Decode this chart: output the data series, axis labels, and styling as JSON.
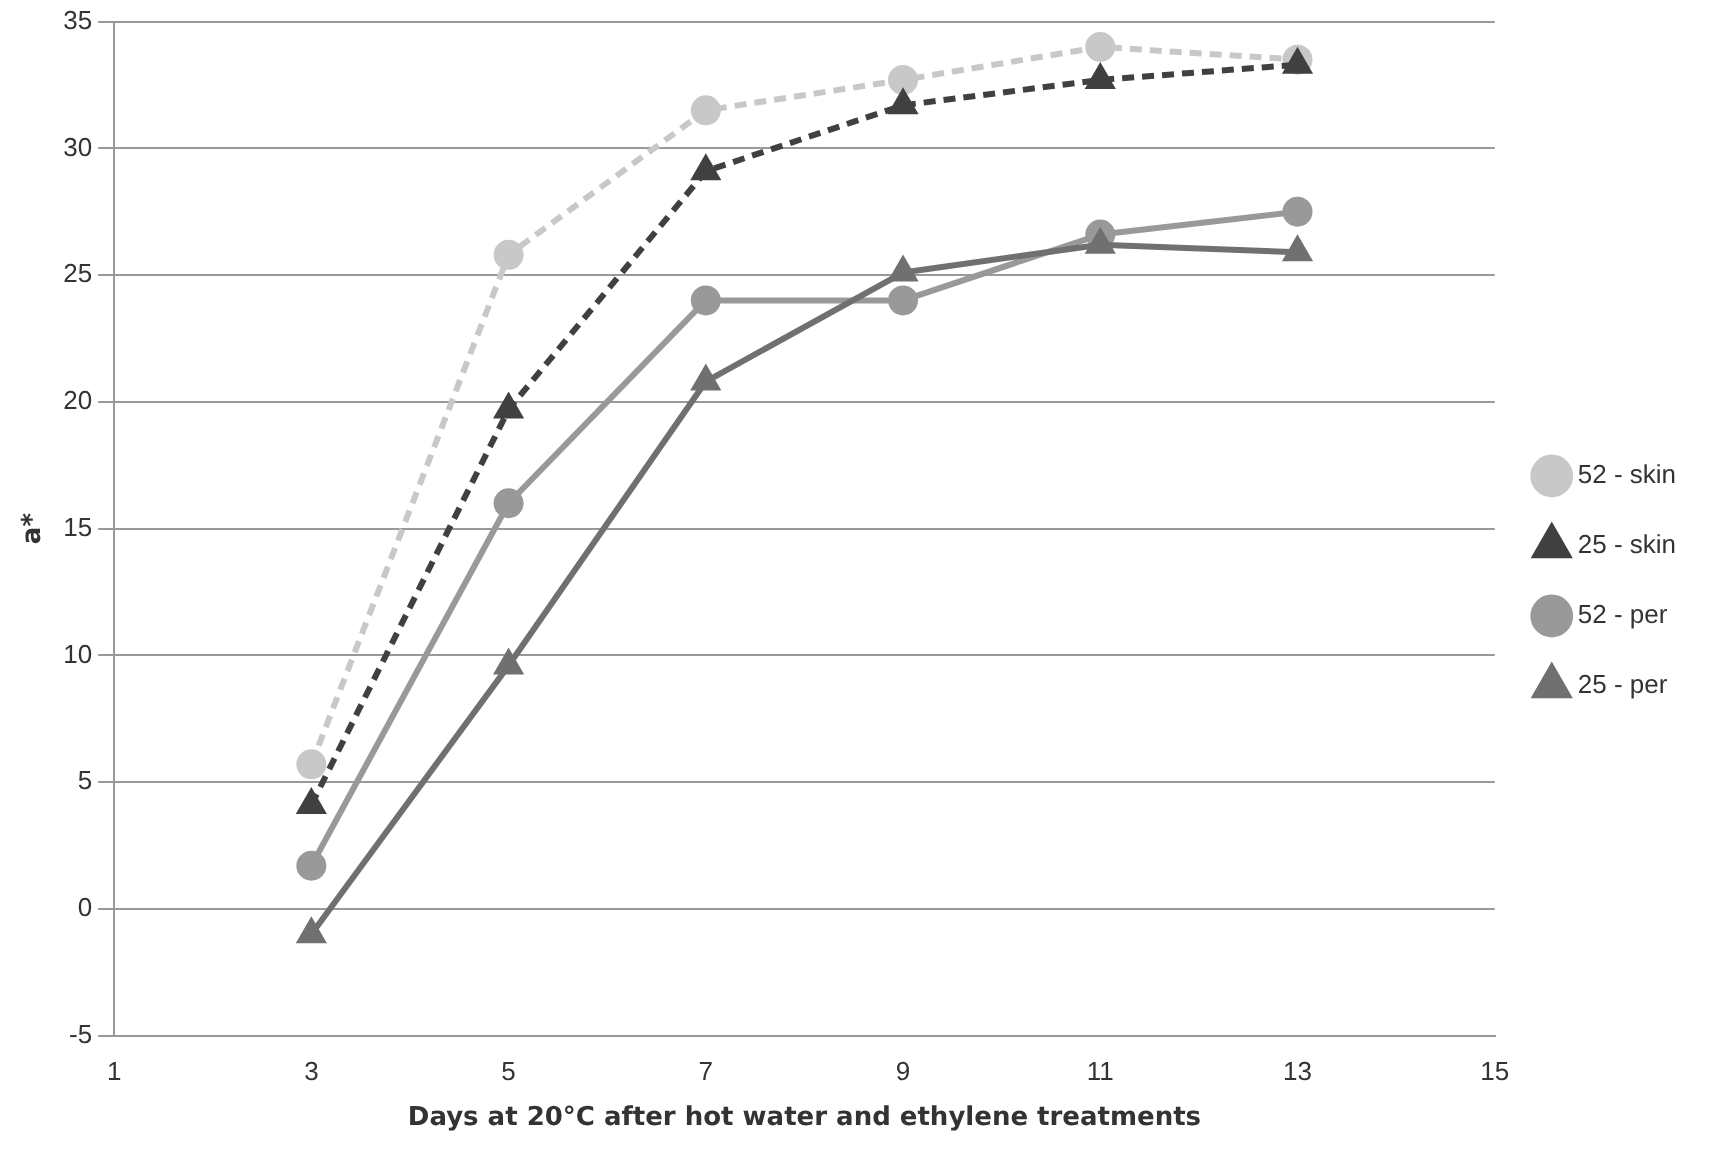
{
  "chart_data": {
    "type": "line",
    "xlabel": "Days at 20°C after hot water and ethylene treatments",
    "ylabel": "a*",
    "x": [
      3,
      5,
      7,
      9,
      11,
      13
    ],
    "series": [
      {
        "name": "52 - skin",
        "color": "#c8c8c8",
        "marker": "circle",
        "line_style": "dashed",
        "values": [
          5.7,
          25.8,
          31.5,
          32.7,
          34.0,
          33.5
        ]
      },
      {
        "name": "25 - skin",
        "color": "#404040",
        "marker": "triangle",
        "line_style": "dashed",
        "values": [
          4.1,
          19.7,
          29.1,
          31.7,
          32.7,
          33.3
        ]
      },
      {
        "name": "52 - per",
        "color": "#999999",
        "marker": "circle",
        "line_style": "solid",
        "values": [
          1.7,
          16.0,
          24.0,
          24.0,
          26.6,
          27.5
        ]
      },
      {
        "name": "25 - per",
        "color": "#707070",
        "marker": "triangle",
        "line_style": "solid",
        "values": [
          -1.0,
          9.6,
          20.8,
          25.1,
          26.2,
          25.9
        ]
      }
    ],
    "xlim": [
      1,
      15
    ],
    "xticks": [
      1,
      3,
      5,
      7,
      9,
      11,
      13,
      15
    ],
    "ylim": [
      -5,
      35
    ],
    "yticks": [
      -5,
      0,
      5,
      10,
      15,
      20,
      25,
      30,
      35
    ],
    "grid": "y",
    "legend": "right"
  }
}
